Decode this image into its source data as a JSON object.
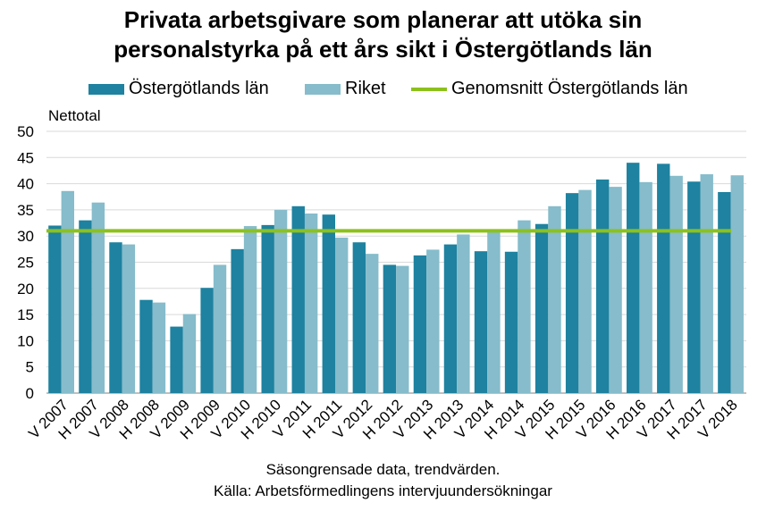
{
  "title_line1": "Privata arbetsgivare som planerar att utöka sin",
  "title_line2": "personalstyrka på ett års sikt i Östergötlands län",
  "footnote_line1": "Säsongrensade data, trendvärden.",
  "footnote_line2": "Källa: Arbetsförmedlingens  intervjuundersökningar",
  "colors": {
    "ostergotland": "#1e82a0",
    "riket": "#86bccb",
    "average": "#8cc11c",
    "grid": "#d9d9d9"
  },
  "chart_data": {
    "type": "bar",
    "title": "Privata arbetsgivare som planerar att utöka sin personalstyrka på ett års sikt i Östergötlands län",
    "ylabel": "Nettotal",
    "xlabel": "",
    "ylim": [
      0,
      50
    ],
    "yticks": [
      "0",
      "5",
      "10",
      "15",
      "20",
      "25",
      "30",
      "35",
      "40",
      "45",
      "50"
    ],
    "grid": true,
    "legend_position": "top",
    "categories": [
      "V 2007",
      "H 2007",
      "V 2008",
      "H 2008",
      "V 2009",
      "H 2009",
      "V 2010",
      "H 2010",
      "V 2011",
      "H 2011",
      "V 2012",
      "H 2012",
      "V 2013",
      "H 2013",
      "V 2014",
      "H 2014",
      "V 2015",
      "H 2015",
      "V 2016",
      "H 2016",
      "V 2017",
      "H 2017",
      "V 2018"
    ],
    "series": [
      {
        "name": "Östergötlands län",
        "values": [
          32.0,
          33.0,
          28.8,
          17.8,
          12.7,
          20.1,
          27.5,
          32.1,
          35.7,
          34.1,
          28.8,
          24.5,
          26.3,
          28.4,
          27.1,
          27.0,
          32.3,
          38.2,
          40.8,
          44.0,
          43.8,
          40.4,
          38.4
        ]
      },
      {
        "name": "Riket",
        "values": [
          38.6,
          36.4,
          28.4,
          17.3,
          15.1,
          24.5,
          31.9,
          35.0,
          34.3,
          29.7,
          26.6,
          24.3,
          27.4,
          30.3,
          31.0,
          33.0,
          35.7,
          38.8,
          39.4,
          40.3,
          41.5,
          41.8,
          41.6
        ]
      }
    ],
    "reference_line": {
      "name": "Genomsnitt Östergötlands län",
      "value": 31.0
    }
  }
}
